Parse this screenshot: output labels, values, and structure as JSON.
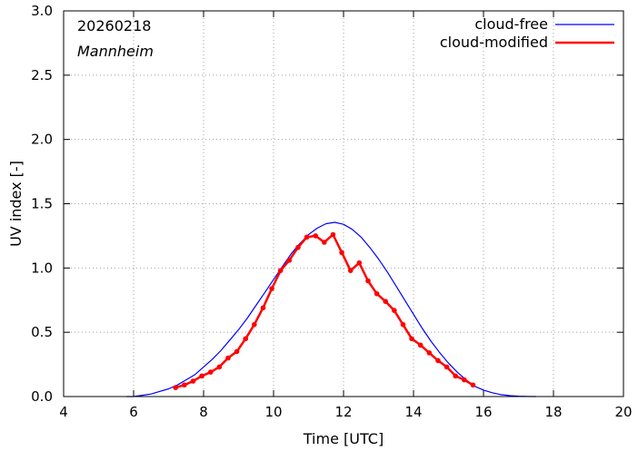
{
  "chart_data": {
    "type": "line",
    "title": "",
    "xlabel": "Time  [UTC]",
    "ylabel": "UV index  [-]",
    "xlim": [
      4,
      20
    ],
    "ylim": [
      0.0,
      3.0
    ],
    "x_ticks": [
      4,
      6,
      8,
      10,
      12,
      14,
      16,
      18,
      20
    ],
    "x_tick_labels": [
      "4",
      "6",
      "8",
      "10",
      "12",
      "14",
      "16",
      "18",
      "20"
    ],
    "y_ticks": [
      0.0,
      0.5,
      1.0,
      1.5,
      2.0,
      2.5,
      3.0
    ],
    "y_tick_labels": [
      "0.0",
      "0.5",
      "1.0",
      "1.5",
      "2.0",
      "2.5",
      "3.0"
    ],
    "annotations": {
      "date": "20260218",
      "location": "Mannheim"
    },
    "legend_position": "top-right",
    "series": [
      {
        "name": "cloud-free",
        "color": "#0000ff",
        "style": "line",
        "x": [
          5.8,
          6.0,
          6.25,
          6.5,
          6.75,
          7.0,
          7.25,
          7.5,
          7.75,
          8.0,
          8.25,
          8.5,
          8.75,
          9.0,
          9.25,
          9.5,
          9.75,
          10.0,
          10.25,
          10.5,
          10.75,
          11.0,
          11.25,
          11.5,
          11.75,
          12.0,
          12.25,
          12.5,
          12.75,
          13.0,
          13.25,
          13.5,
          13.75,
          14.0,
          14.25,
          14.5,
          14.75,
          15.0,
          15.25,
          15.5,
          15.75,
          16.0,
          16.25,
          16.5,
          16.75,
          17.0,
          17.25,
          17.5
        ],
        "values": [
          0.0,
          0.0,
          0.01,
          0.02,
          0.04,
          0.06,
          0.09,
          0.13,
          0.17,
          0.23,
          0.29,
          0.36,
          0.44,
          0.52,
          0.61,
          0.71,
          0.81,
          0.91,
          1.01,
          1.11,
          1.19,
          1.26,
          1.31,
          1.345,
          1.355,
          1.34,
          1.3,
          1.24,
          1.16,
          1.07,
          0.97,
          0.86,
          0.75,
          0.64,
          0.53,
          0.43,
          0.34,
          0.26,
          0.19,
          0.13,
          0.08,
          0.05,
          0.03,
          0.015,
          0.007,
          0.003,
          0.001,
          0.0
        ]
      },
      {
        "name": "cloud-modified",
        "color": "#ff0000",
        "style": "line-points",
        "x": [
          7.2,
          7.45,
          7.7,
          7.95,
          8.2,
          8.45,
          8.7,
          8.95,
          9.2,
          9.45,
          9.7,
          9.95,
          10.2,
          10.45,
          10.7,
          10.95,
          11.2,
          11.45,
          11.7,
          11.95,
          12.2,
          12.45,
          12.7,
          12.95,
          13.2,
          13.45,
          13.7,
          13.95,
          14.2,
          14.45,
          14.7,
          14.95,
          15.2,
          15.45,
          15.7
        ],
        "values": [
          0.07,
          0.09,
          0.12,
          0.16,
          0.19,
          0.23,
          0.3,
          0.35,
          0.45,
          0.56,
          0.69,
          0.84,
          0.98,
          1.06,
          1.16,
          1.24,
          1.25,
          1.2,
          1.26,
          1.12,
          0.98,
          1.04,
          0.9,
          0.8,
          0.74,
          0.67,
          0.56,
          0.45,
          0.4,
          0.34,
          0.28,
          0.23,
          0.16,
          0.13,
          0.09
        ]
      }
    ]
  }
}
